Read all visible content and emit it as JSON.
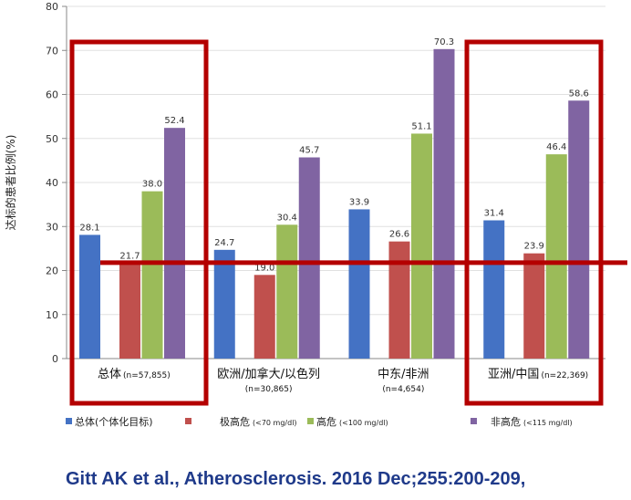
{
  "citation": "Gitt AK et al., Atherosclerosis. 2016 Dec;255:200-209,",
  "chart_data": {
    "type": "bar",
    "ylabel": "达标的患者比例(%)",
    "ylim": [
      0,
      80
    ],
    "yticks": [
      0,
      10,
      20,
      30,
      40,
      50,
      60,
      70,
      80
    ],
    "categories": [
      {
        "main": "总体",
        "sub": "(n=57,855)"
      },
      {
        "main": "欧洲/加拿大/以色列",
        "sub": "(n=30,865)"
      },
      {
        "main": "中东/非洲",
        "sub": "(n=4,654)"
      },
      {
        "main": "亚洲/中国",
        "sub": "(n=22,369)"
      }
    ],
    "series": [
      {
        "name": "总体(个体化目标)",
        "color": "#4472c4",
        "values": [
          28.1,
          24.7,
          33.9,
          31.4
        ],
        "labels": [
          "28.1",
          "24.7",
          "33.9",
          "31.4"
        ]
      },
      {
        "name": "极高危 (<70 mg/dl)",
        "color": "#c0504d",
        "values": [
          21.7,
          19.0,
          26.6,
          23.9
        ],
        "labels": [
          "21.7",
          "19.0",
          "26.6",
          "23.9"
        ]
      },
      {
        "name": "高危 (<100 mg/dl)",
        "color": "#9bbb59",
        "values": [
          38.0,
          30.4,
          51.1,
          46.4
        ],
        "labels": [
          "38.0",
          "30.4",
          "51.1",
          "46.4"
        ]
      },
      {
        "name": "非高危 (<115 mg/dl)",
        "color": "#8064a2",
        "values": [
          52.4,
          45.7,
          70.3,
          58.6
        ],
        "labels": [
          "52.4",
          "45.7",
          "70.3",
          "58.6"
        ]
      }
    ],
    "legend_position": "bottom",
    "annotations": {
      "reference_line_value": 22,
      "reference_line_color": "#b40000",
      "highlight_box_color": "#b40000",
      "highlighted_categories": [
        "总体",
        "亚洲/中国"
      ]
    }
  }
}
